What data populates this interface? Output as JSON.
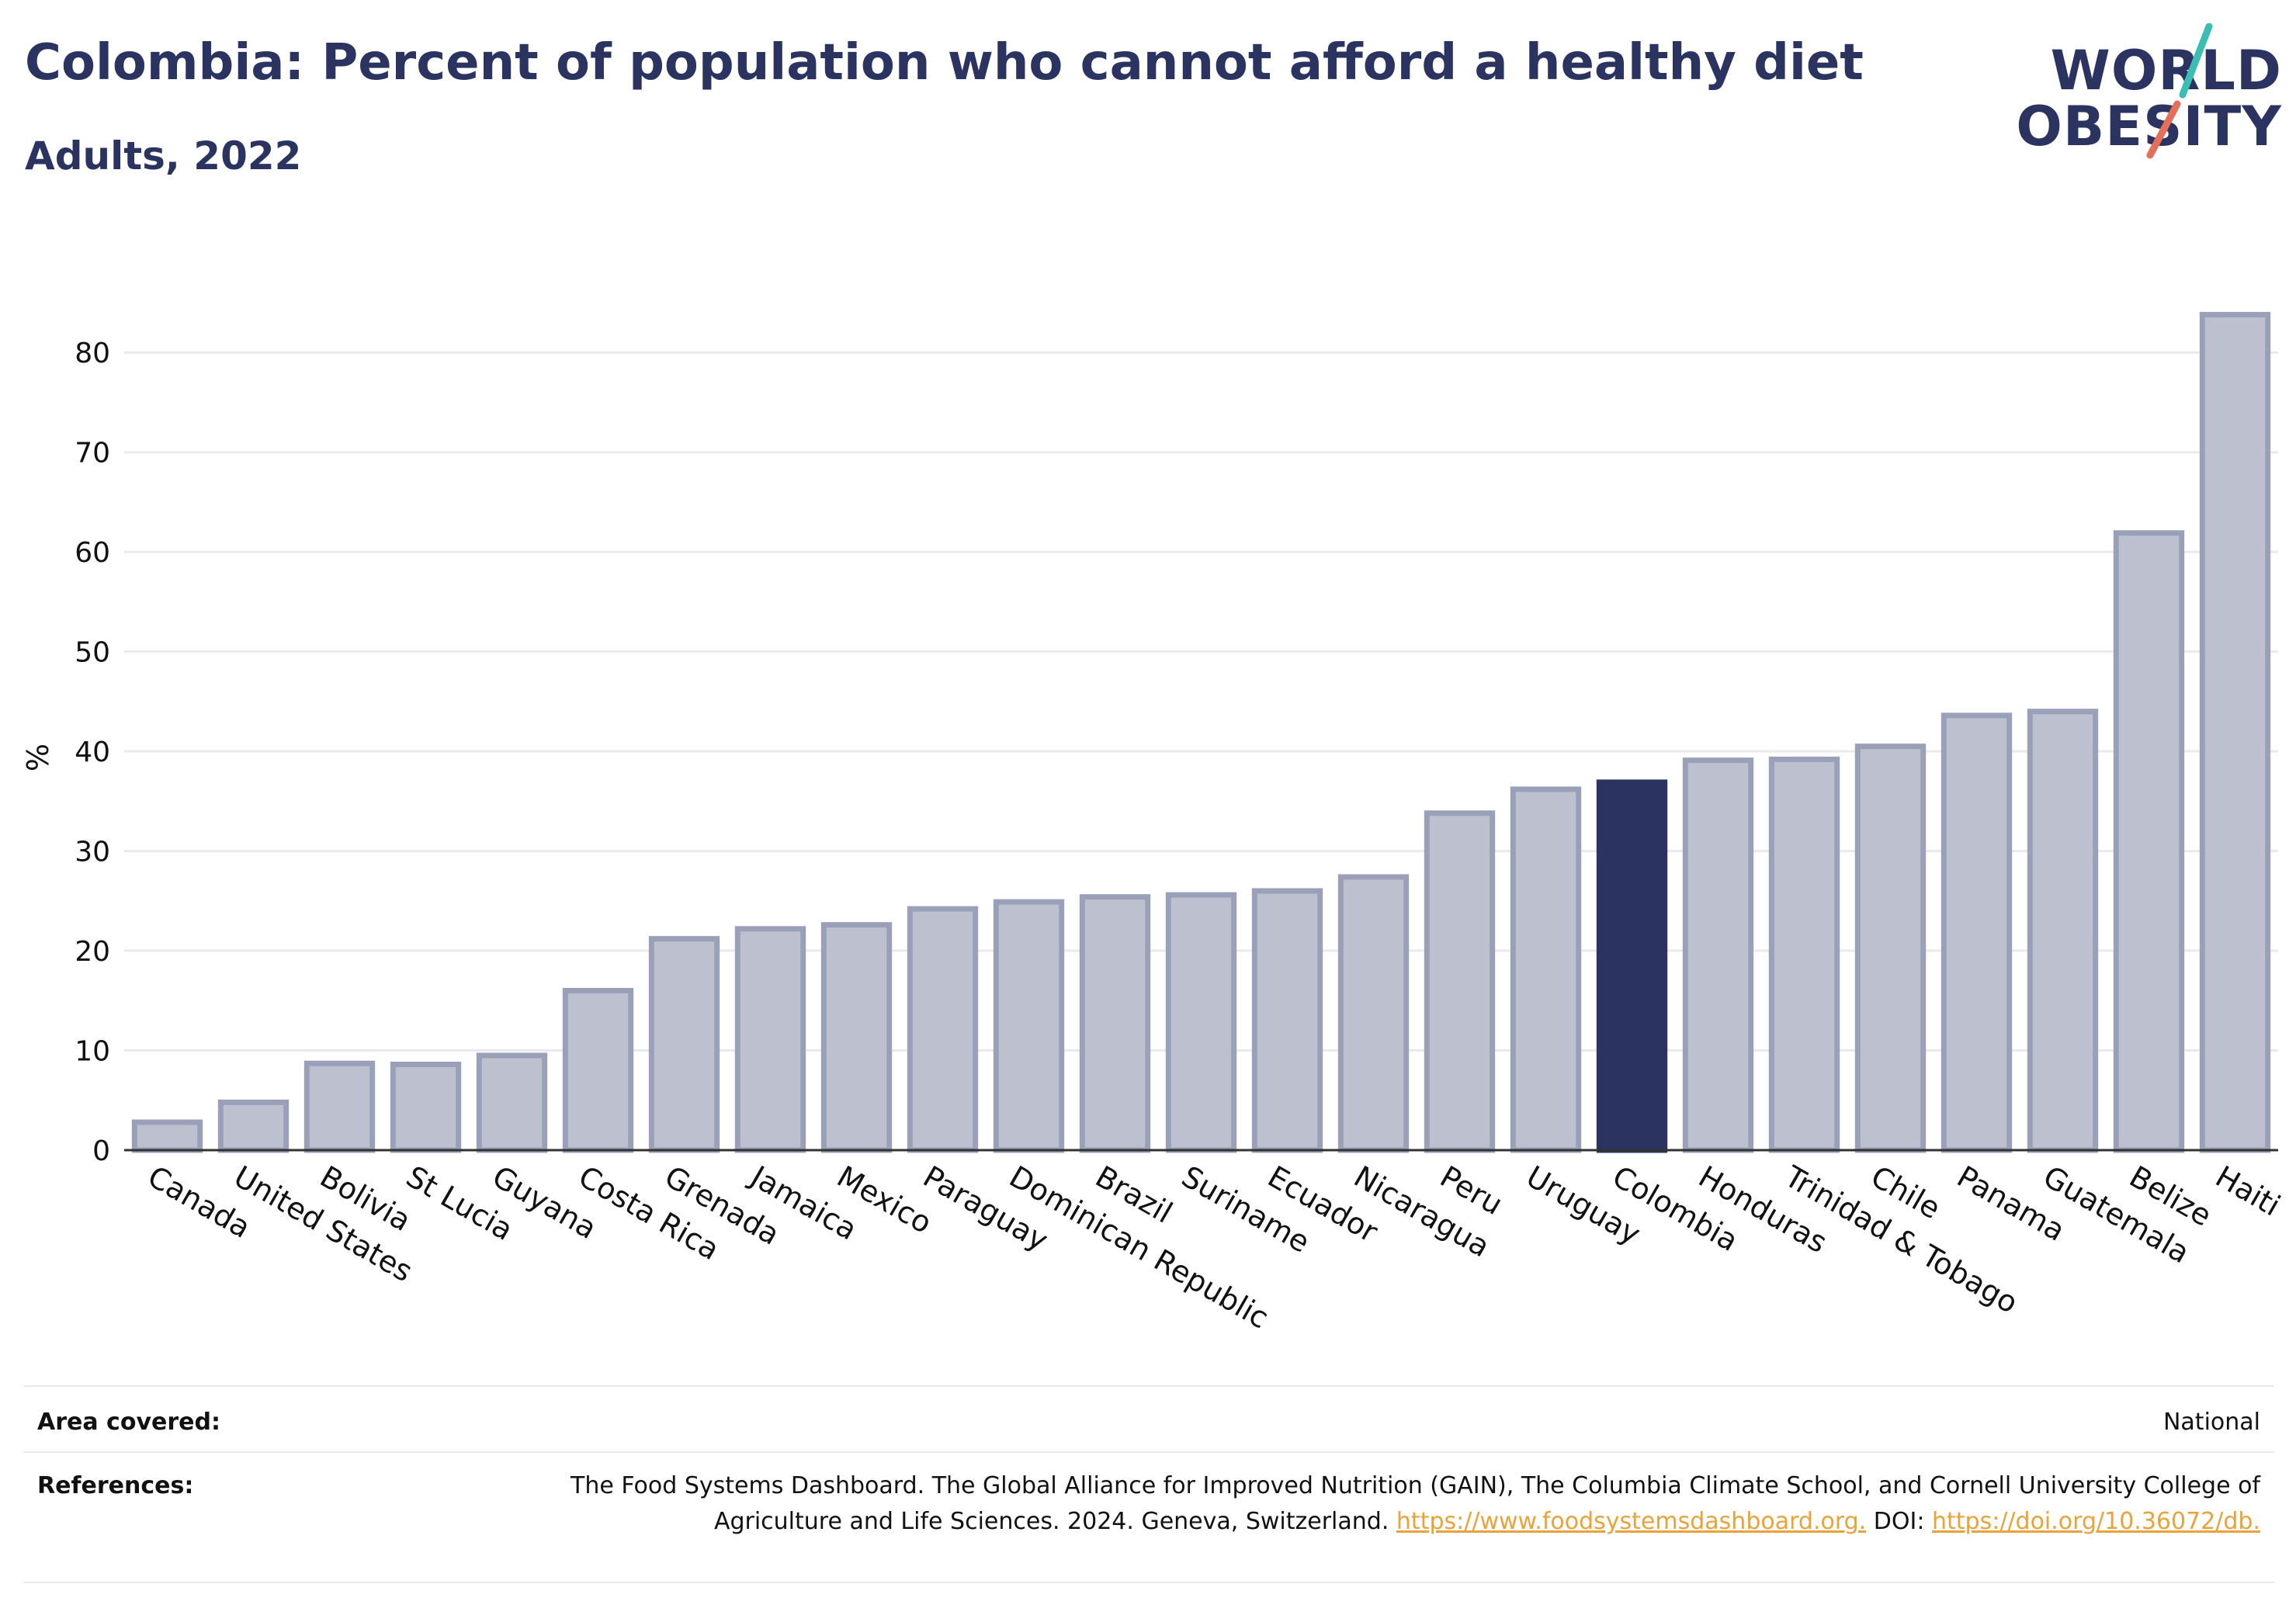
{
  "header": {
    "title": "Colombia: Percent of population who cannot afford a healthy diet",
    "subtitle": "Adults, 2022"
  },
  "logo": {
    "line1": "WORLD",
    "line2": "OBESITY"
  },
  "colors": {
    "bar": "#bcc0cf",
    "bar_border": "#9aa0b8",
    "highlight": "#2b3461",
    "grid": "#e9eaf0",
    "text": "#111111",
    "link": "#e8a33a"
  },
  "chart_data": {
    "type": "bar",
    "title": "Colombia: Percent of population who cannot afford a healthy diet",
    "subtitle": "Adults, 2022",
    "xlabel": "",
    "ylabel": "%",
    "ylim": [
      0,
      85
    ],
    "yticks": [
      0,
      10,
      20,
      30,
      40,
      50,
      60,
      70,
      80
    ],
    "grid": true,
    "highlight": "Colombia",
    "categories": [
      "Canada",
      "United States",
      "Bolivia",
      "St Lucia",
      "Guyana",
      "Costa Rica",
      "Grenada",
      "Jamaica",
      "Mexico",
      "Paraguay",
      "Dominican Republic",
      "Brazil",
      "Suriname",
      "Ecuador",
      "Nicaragua",
      "Peru",
      "Uruguay",
      "Colombia",
      "Honduras",
      "Trinidad & Tobago",
      "Chile",
      "Panama",
      "Guatemala",
      "Belize",
      "Haiti"
    ],
    "values": [
      2.8,
      4.8,
      8.7,
      8.6,
      9.5,
      16.0,
      21.2,
      22.2,
      22.6,
      24.2,
      24.9,
      25.4,
      25.6,
      26.0,
      27.4,
      33.8,
      36.2,
      36.9,
      39.1,
      39.2,
      40.5,
      43.6,
      44.0,
      61.9,
      83.8
    ]
  },
  "footer": {
    "area_label": "Area covered:",
    "area_value": "National",
    "references_label": "References:",
    "references_text": "The Food Systems Dashboard. The Global Alliance for Improved Nutrition (GAIN), The Columbia Climate School, and Cornell University College of Agriculture and Life Sciences. 2024. Geneva, Switzerland.",
    "references_link1": "https://www.foodsystemsdashboard.org.",
    "references_doi_label": "DOI:",
    "references_link2": "https://doi.org/10.36072/db."
  }
}
